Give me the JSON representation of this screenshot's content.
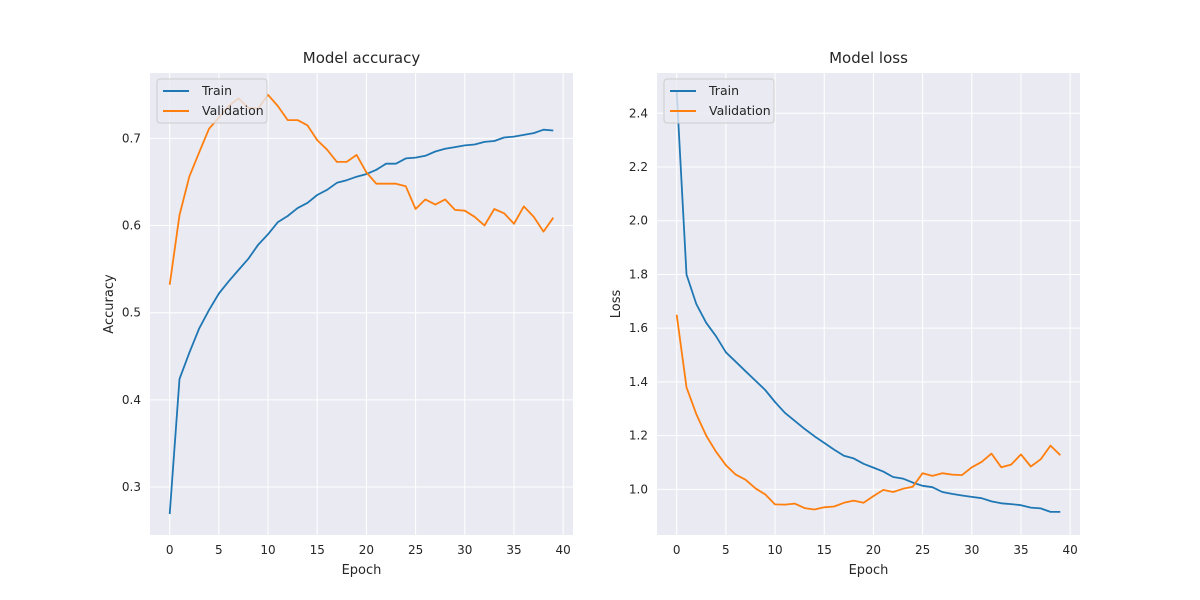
{
  "chart_data": [
    {
      "type": "line",
      "title": "Model accuracy",
      "xlabel": "Epoch",
      "ylabel": "Accuracy",
      "xlim": [
        -2,
        41
      ],
      "ylim": [
        0.245,
        0.775
      ],
      "xticks": [
        0,
        5,
        10,
        15,
        20,
        25,
        30,
        35,
        40
      ],
      "yticks": [
        0.3,
        0.4,
        0.5,
        0.6,
        0.7
      ],
      "grid": true,
      "legend": "top-left",
      "x": [
        0,
        1,
        2,
        3,
        4,
        5,
        6,
        7,
        8,
        9,
        10,
        11,
        12,
        13,
        14,
        15,
        16,
        17,
        18,
        19,
        20,
        21,
        22,
        23,
        24,
        25,
        26,
        27,
        28,
        29,
        30,
        31,
        32,
        33,
        34,
        35,
        36,
        37,
        38,
        39
      ],
      "series": [
        {
          "name": "Train",
          "color": "#1f77b4",
          "values": [
            0.269,
            0.424,
            0.454,
            0.482,
            0.503,
            0.522,
            0.536,
            0.549,
            0.562,
            0.578,
            0.59,
            0.604,
            0.611,
            0.62,
            0.626,
            0.635,
            0.641,
            0.649,
            0.652,
            0.656,
            0.659,
            0.664,
            0.671,
            0.671,
            0.677,
            0.678,
            0.68,
            0.685,
            0.688,
            0.69,
            0.692,
            0.693,
            0.696,
            0.697,
            0.701,
            0.702,
            0.704,
            0.706,
            0.71,
            0.709
          ]
        },
        {
          "name": "Validation",
          "color": "#ff7f0e",
          "values": [
            0.532,
            0.612,
            0.656,
            0.684,
            0.711,
            0.724,
            0.737,
            0.746,
            0.735,
            0.734,
            0.75,
            0.737,
            0.721,
            0.721,
            0.715,
            0.698,
            0.687,
            0.673,
            0.673,
            0.681,
            0.661,
            0.648,
            0.648,
            0.648,
            0.645,
            0.619,
            0.63,
            0.624,
            0.63,
            0.618,
            0.617,
            0.61,
            0.6,
            0.619,
            0.614,
            0.602,
            0.622,
            0.61,
            0.593,
            0.609
          ]
        }
      ]
    },
    {
      "type": "line",
      "title": "Model loss",
      "xlabel": "Epoch",
      "ylabel": "Loss",
      "xlim": [
        -2,
        41
      ],
      "ylim": [
        0.83,
        2.55
      ],
      "xticks": [
        0,
        5,
        10,
        15,
        20,
        25,
        30,
        35,
        40
      ],
      "yticks": [
        1.0,
        1.2,
        1.4,
        1.6,
        1.8,
        2.0,
        2.2,
        2.4
      ],
      "grid": true,
      "legend": "top-left",
      "x": [
        0,
        1,
        2,
        3,
        4,
        5,
        6,
        7,
        8,
        9,
        10,
        11,
        12,
        13,
        14,
        15,
        16,
        17,
        18,
        19,
        20,
        21,
        22,
        23,
        24,
        25,
        26,
        27,
        28,
        29,
        30,
        31,
        32,
        33,
        34,
        35,
        36,
        37,
        38,
        39
      ],
      "series": [
        {
          "name": "Train",
          "color": "#1f77b4",
          "values": [
            2.48,
            1.8,
            1.69,
            1.62,
            1.57,
            1.51,
            1.475,
            1.44,
            1.405,
            1.37,
            1.325,
            1.285,
            1.255,
            1.225,
            1.198,
            1.173,
            1.148,
            1.125,
            1.115,
            1.095,
            1.081,
            1.066,
            1.046,
            1.04,
            1.025,
            1.013,
            1.008,
            0.99,
            0.983,
            0.977,
            0.972,
            0.967,
            0.955,
            0.948,
            0.945,
            0.941,
            0.932,
            0.929,
            0.916,
            0.916
          ]
        },
        {
          "name": "Validation",
          "color": "#ff7f0e",
          "values": [
            1.65,
            1.38,
            1.28,
            1.2,
            1.14,
            1.09,
            1.055,
            1.036,
            1.004,
            0.981,
            0.944,
            0.943,
            0.947,
            0.93,
            0.925,
            0.933,
            0.936,
            0.95,
            0.958,
            0.95,
            0.975,
            0.998,
            0.99,
            1.002,
            1.01,
            1.06,
            1.05,
            1.06,
            1.055,
            1.053,
            1.082,
            1.102,
            1.133,
            1.082,
            1.092,
            1.13,
            1.085,
            1.112,
            1.163,
            1.127
          ]
        }
      ]
    }
  ]
}
